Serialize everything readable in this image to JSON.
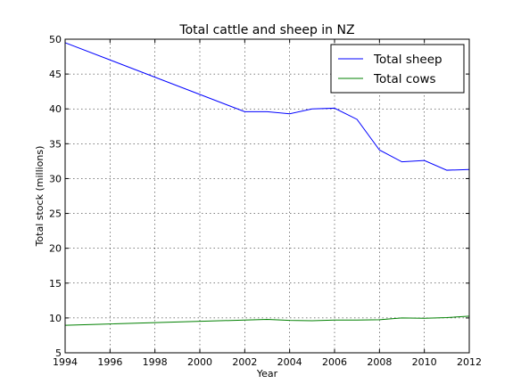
{
  "chart_data": {
    "type": "line",
    "title": "Total cattle and sheep in NZ",
    "xlabel": "Year",
    "ylabel": "Total stock (millions)",
    "xlim": [
      1994,
      2012
    ],
    "ylim": [
      5,
      50
    ],
    "xticks": [
      1994,
      1996,
      1998,
      2000,
      2002,
      2004,
      2006,
      2008,
      2010,
      2012
    ],
    "yticks": [
      5,
      10,
      15,
      20,
      25,
      30,
      35,
      40,
      45,
      50
    ],
    "grid": true,
    "legend_position": "top-right",
    "x": [
      1994,
      2002,
      2003,
      2004,
      2005,
      2006,
      2007,
      2008,
      2009,
      2010,
      2011,
      2012
    ],
    "series": [
      {
        "name": "Total sheep",
        "color": "#0000ff",
        "values": [
          49.5,
          39.6,
          39.6,
          39.3,
          40.0,
          40.1,
          38.5,
          34.1,
          32.4,
          32.6,
          31.2,
          31.3
        ]
      },
      {
        "name": "Total cows",
        "color": "#008000",
        "values": [
          8.95,
          9.7,
          9.8,
          9.65,
          9.6,
          9.7,
          9.7,
          9.75,
          10.0,
          9.95,
          10.05,
          10.25
        ]
      }
    ]
  }
}
